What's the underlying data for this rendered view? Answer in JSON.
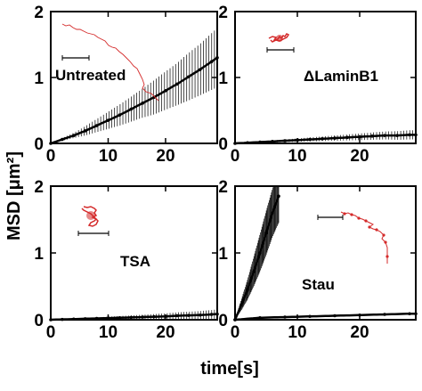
{
  "figure": {
    "ylabel": "MSD [μm²]",
    "xlabel": "time[s]"
  },
  "chart_data": [
    {
      "type": "line",
      "label": "Untreated",
      "xlim": [
        0,
        29
      ],
      "ylim": [
        0,
        2
      ],
      "xticks": [
        "0",
        "10",
        "20"
      ],
      "yticks": [
        "0",
        "1",
        "2"
      ],
      "series": [
        {
          "x": [
            0,
            2,
            4,
            6,
            8,
            10,
            12,
            14,
            16,
            18,
            20,
            22,
            24,
            26,
            28,
            29
          ],
          "y": [
            0.0,
            0.06,
            0.12,
            0.19,
            0.27,
            0.35,
            0.43,
            0.52,
            0.61,
            0.7,
            0.8,
            0.9,
            1.01,
            1.12,
            1.24,
            1.3
          ],
          "err": [
            0.0,
            0.02,
            0.04,
            0.07,
            0.1,
            0.13,
            0.16,
            0.19,
            0.22,
            0.26,
            0.29,
            0.32,
            0.36,
            0.39,
            0.43,
            0.45
          ]
        }
      ],
      "inset": {
        "color": "#d42a2a"
      }
    },
    {
      "type": "line",
      "label": "ΔLaminB1",
      "xlim": [
        0,
        29
      ],
      "ylim": [
        0,
        2
      ],
      "xticks": [
        "0",
        "10",
        "20"
      ],
      "yticks": [
        "0",
        "1",
        "2"
      ],
      "series": [
        {
          "x": [
            0,
            2,
            4,
            6,
            8,
            10,
            12,
            14,
            16,
            18,
            20,
            22,
            24,
            26,
            28,
            29
          ],
          "y": [
            0.0,
            0.01,
            0.02,
            0.03,
            0.04,
            0.05,
            0.06,
            0.07,
            0.08,
            0.09,
            0.1,
            0.11,
            0.12,
            0.12,
            0.13,
            0.13
          ],
          "err": [
            0.0,
            0.005,
            0.01,
            0.015,
            0.02,
            0.025,
            0.03,
            0.035,
            0.04,
            0.045,
            0.05,
            0.055,
            0.06,
            0.065,
            0.07,
            0.07
          ]
        }
      ],
      "inset": {
        "color": "#d42a2a"
      }
    },
    {
      "type": "line",
      "label": "TSA",
      "xlim": [
        0,
        29
      ],
      "ylim": [
        0,
        2
      ],
      "xticks": [
        "0",
        "10",
        "20"
      ],
      "yticks": [
        "0",
        "1",
        "2"
      ],
      "series": [
        {
          "x": [
            0,
            2,
            4,
            6,
            8,
            10,
            12,
            14,
            16,
            18,
            20,
            22,
            24,
            26,
            28,
            29
          ],
          "y": [
            0.0,
            0.005,
            0.01,
            0.015,
            0.02,
            0.025,
            0.03,
            0.035,
            0.04,
            0.045,
            0.05,
            0.06,
            0.065,
            0.07,
            0.08,
            0.085
          ],
          "err": [
            0.0,
            0.004,
            0.008,
            0.012,
            0.016,
            0.02,
            0.025,
            0.03,
            0.035,
            0.04,
            0.045,
            0.05,
            0.055,
            0.06,
            0.065,
            0.07
          ]
        }
      ],
      "inset": {
        "color": "#d42a2a"
      }
    },
    {
      "type": "line",
      "label": "Stau",
      "xlim": [
        0,
        29
      ],
      "ylim": [
        0,
        2
      ],
      "xticks": [
        "0",
        "10",
        "20"
      ],
      "yticks": [
        "0",
        "1",
        "2"
      ],
      "series": [
        {
          "x": [
            0,
            1,
            2,
            3,
            4,
            5,
            6,
            7
          ],
          "y": [
            0.0,
            0.22,
            0.45,
            0.72,
            1.0,
            1.3,
            1.6,
            1.85
          ],
          "err": [
            0.0,
            0.08,
            0.15,
            0.22,
            0.28,
            0.33,
            0.36,
            0.4
          ]
        },
        {
          "x": [
            0,
            4,
            8,
            12,
            16,
            20,
            24,
            28,
            29
          ],
          "y": [
            0.0,
            0.03,
            0.04,
            0.05,
            0.06,
            0.07,
            0.08,
            0.09,
            0.09
          ],
          "err": [
            0.0,
            0.01,
            0.01,
            0.01,
            0.01,
            0.01,
            0.01,
            0.01,
            0.01
          ]
        }
      ],
      "inset": {
        "color": "#d42a2a"
      }
    }
  ]
}
